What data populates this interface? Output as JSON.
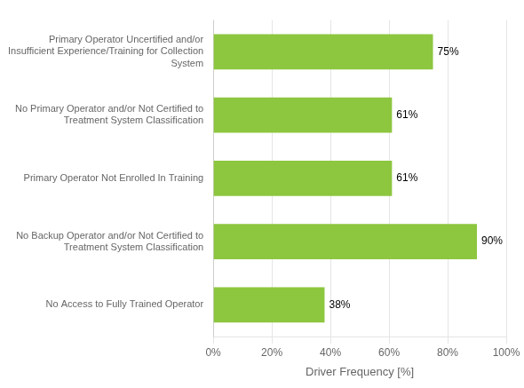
{
  "chart_data": {
    "type": "bar",
    "orientation": "horizontal",
    "categories": [
      "No Access to Fully Trained Operator",
      "No Backup Operator and/or Not Certified to\nTreatment System Classification",
      "Primary Operator Not Enrolled In Training",
      "No Primary Operator and/or Not Certified to\nTreatment System Classification",
      "Primary Operator Uncertified and/or\nInsufficient Experience/Training for Collection\nSystem"
    ],
    "values": [
      38,
      90,
      61,
      61,
      75
    ],
    "value_labels": [
      "38%",
      "90%",
      "61%",
      "61%",
      "75%"
    ],
    "data_labels": true,
    "color": "#8dc63f",
    "xlabel": "Driver Frequency [%]",
    "xlim": [
      0,
      100
    ],
    "xticks": [
      {
        "value": 0,
        "label": "0%"
      },
      {
        "value": 20,
        "label": "20%"
      },
      {
        "value": 40,
        "label": "40%"
      },
      {
        "value": 60,
        "label": "60%"
      },
      {
        "value": 80,
        "label": "80%"
      },
      {
        "value": 100,
        "label": "100%"
      }
    ],
    "grid": true
  }
}
